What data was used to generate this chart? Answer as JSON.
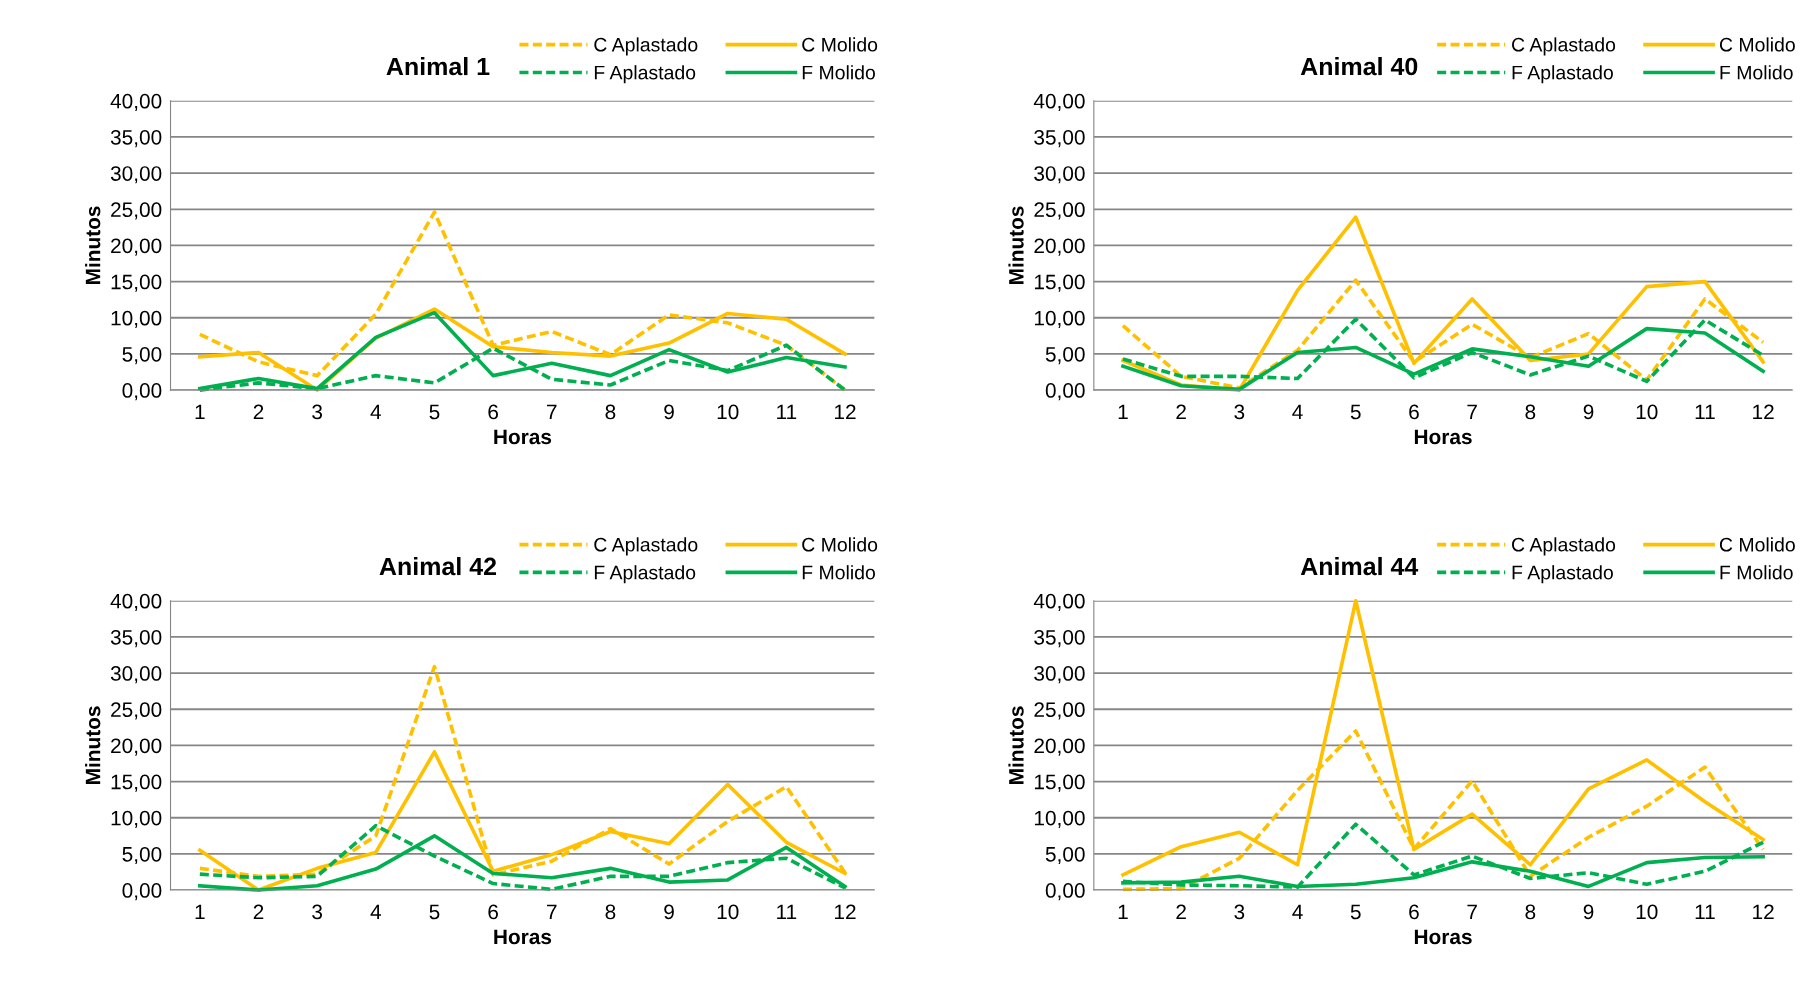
{
  "chart_data": [
    {
      "type": "line",
      "title": "Animal 1",
      "xlabel": "Horas",
      "ylabel": "Minutos",
      "categories": [
        "1",
        "2",
        "3",
        "4",
        "5",
        "6",
        "7",
        "8",
        "9",
        "10",
        "11",
        "12"
      ],
      "ylim": [
        0,
        40
      ],
      "yticks": [
        {
          "value": 0,
          "label": "0,00"
        },
        {
          "value": 5,
          "label": "5,00"
        },
        {
          "value": 10,
          "label": "10,00"
        },
        {
          "value": 15,
          "label": "15,00"
        },
        {
          "value": 20,
          "label": "20,00"
        },
        {
          "value": 25,
          "label": "25,00"
        },
        {
          "value": 30,
          "label": "30,00"
        },
        {
          "value": 35,
          "label": "35,00"
        },
        {
          "value": 40,
          "label": "40,00"
        }
      ],
      "grid": "y",
      "legend": "top right",
      "series": [
        {
          "name": "C Aplastado",
          "color": "#ffc000",
          "line_style": "dashed",
          "values": [
            7.7,
            3.9,
            2.0,
            10.5,
            24.6,
            6.2,
            8.1,
            4.9,
            10.4,
            9.3,
            6.2,
            0
          ]
        },
        {
          "name": "C Molido",
          "color": "#ffc000",
          "line_style": "solid",
          "values": [
            4.6,
            5.2,
            0,
            7.2,
            11.2,
            6.0,
            5.2,
            4.7,
            6.5,
            10.6,
            9.8,
            5.0
          ]
        },
        {
          "name": "F Aplastado",
          "color": "#00b050",
          "line_style": "dashed",
          "values": [
            0,
            1.0,
            0.2,
            2.0,
            1.0,
            5.8,
            1.5,
            0.7,
            4.1,
            2.7,
            6.2,
            0
          ]
        },
        {
          "name": "F Molido",
          "color": "#00b050",
          "line_style": "solid",
          "values": [
            0.2,
            1.6,
            0.2,
            7.3,
            10.7,
            2.0,
            3.7,
            2.0,
            5.6,
            2.5,
            4.5,
            3.2
          ]
        }
      ]
    },
    {
      "type": "line",
      "title": "Animal 40",
      "xlabel": "Horas",
      "ylabel": "Minutos",
      "categories": [
        "1",
        "2",
        "3",
        "4",
        "5",
        "6",
        "7",
        "8",
        "9",
        "10",
        "11",
        "12"
      ],
      "ylim": [
        0,
        40
      ],
      "yticks": [
        {
          "value": 0,
          "label": "0,00"
        },
        {
          "value": 5,
          "label": "5,00"
        },
        {
          "value": 10,
          "label": "10,00"
        },
        {
          "value": 15,
          "label": "15,00"
        },
        {
          "value": 20,
          "label": "20,00"
        },
        {
          "value": 25,
          "label": "25,00"
        },
        {
          "value": 30,
          "label": "30,00"
        },
        {
          "value": 35,
          "label": "35,00"
        },
        {
          "value": 40,
          "label": "40,00"
        }
      ],
      "grid": "y",
      "legend": "top right",
      "series": [
        {
          "name": "C Aplastado",
          "color": "#ffc000",
          "line_style": "dashed",
          "values": [
            8.9,
            1.9,
            0.3,
            5.5,
            15.2,
            3.9,
            9.1,
            4.5,
            7.8,
            1.4,
            12.6,
            6.6
          ]
        },
        {
          "name": "C Molido",
          "color": "#ffc000",
          "line_style": "solid",
          "values": [
            4.1,
            0.7,
            0,
            13.8,
            23.9,
            3.7,
            12.6,
            4.1,
            5.0,
            14.3,
            15.0,
            3.9
          ]
        },
        {
          "name": "F Aplastado",
          "color": "#00b050",
          "line_style": "dashed",
          "values": [
            4.3,
            1.9,
            1.9,
            1.6,
            9.8,
            1.7,
            5.2,
            2.1,
            4.7,
            1.2,
            9.7,
            4.8
          ]
        },
        {
          "name": "F Molido",
          "color": "#00b050",
          "line_style": "solid",
          "values": [
            3.3,
            0.6,
            0.1,
            5.2,
            5.9,
            2.2,
            5.7,
            4.6,
            3.3,
            8.5,
            7.9,
            2.6
          ]
        }
      ]
    },
    {
      "type": "line",
      "title": "Animal 42",
      "xlabel": "Horas",
      "ylabel": "Minutos",
      "categories": [
        "1",
        "2",
        "3",
        "4",
        "5",
        "6",
        "7",
        "8",
        "9",
        "10",
        "11",
        "12"
      ],
      "ylim": [
        0,
        40
      ],
      "yticks": [
        {
          "value": 0,
          "label": "0,00"
        },
        {
          "value": 5,
          "label": "5,00"
        },
        {
          "value": 10,
          "label": "10,00"
        },
        {
          "value": 15,
          "label": "15,00"
        },
        {
          "value": 20,
          "label": "20,00"
        },
        {
          "value": 25,
          "label": "25,00"
        },
        {
          "value": 30,
          "label": "30,00"
        },
        {
          "value": 35,
          "label": "35,00"
        },
        {
          "value": 40,
          "label": "40,00"
        }
      ],
      "grid": "y",
      "legend": "top right",
      "series": [
        {
          "name": "C Aplastado",
          "color": "#ffc000",
          "line_style": "dashed",
          "values": [
            3.0,
            1.9,
            2.2,
            7.5,
            30.9,
            2.1,
            4.0,
            8.5,
            3.6,
            9.5,
            14.3,
            2.4
          ]
        },
        {
          "name": "C Molido",
          "color": "#ffc000",
          "line_style": "solid",
          "values": [
            5.5,
            0,
            3.0,
            5.2,
            19.1,
            2.6,
            4.9,
            8.1,
            6.4,
            14.6,
            6.6,
            2.3
          ]
        },
        {
          "name": "F Aplastado",
          "color": "#00b050",
          "line_style": "dashed",
          "values": [
            2.2,
            1.7,
            1.9,
            8.9,
            4.7,
            0.9,
            0.1,
            1.9,
            1.9,
            3.8,
            4.4,
            0.3
          ]
        },
        {
          "name": "F Molido",
          "color": "#00b050",
          "line_style": "solid",
          "values": [
            0.6,
            0,
            0.6,
            2.9,
            7.5,
            2.3,
            1.7,
            3.0,
            1.1,
            1.4,
            5.9,
            0.5
          ]
        }
      ]
    },
    {
      "type": "line",
      "title": "Animal 44",
      "xlabel": "Horas",
      "ylabel": "Minutos",
      "categories": [
        "1",
        "2",
        "3",
        "4",
        "5",
        "6",
        "7",
        "8",
        "9",
        "10",
        "11",
        "12"
      ],
      "ylim": [
        0,
        40
      ],
      "yticks": [
        {
          "value": 0,
          "label": "0,00"
        },
        {
          "value": 5,
          "label": "5,00"
        },
        {
          "value": 10,
          "label": "10,00"
        },
        {
          "value": 15,
          "label": "15,00"
        },
        {
          "value": 20,
          "label": "20,00"
        },
        {
          "value": 25,
          "label": "25,00"
        },
        {
          "value": 30,
          "label": "30,00"
        },
        {
          "value": 35,
          "label": "35,00"
        },
        {
          "value": 40,
          "label": "40,00"
        }
      ],
      "grid": "y",
      "legend": "top right",
      "series": [
        {
          "name": "C Aplastado",
          "color": "#ffc000",
          "line_style": "dashed",
          "values": [
            0.1,
            0.2,
            4.4,
            13.8,
            22.0,
            5.7,
            15.1,
            1.9,
            7.3,
            11.6,
            17.0,
            5.6
          ]
        },
        {
          "name": "C Molido",
          "color": "#ffc000",
          "line_style": "solid",
          "values": [
            2.1,
            6.0,
            8.0,
            3.5,
            40.0,
            5.6,
            10.5,
            3.5,
            14.0,
            18.0,
            12.2,
            7.0
          ]
        },
        {
          "name": "F Aplastado",
          "color": "#00b050",
          "line_style": "dashed",
          "values": [
            1.2,
            0.7,
            0.6,
            0.4,
            9.1,
            2.1,
            4.7,
            1.6,
            2.4,
            0.8,
            2.6,
            6.6
          ]
        },
        {
          "name": "F Molido",
          "color": "#00b050",
          "line_style": "solid",
          "values": [
            1.0,
            1.1,
            1.9,
            0.5,
            0.8,
            1.7,
            3.9,
            2.6,
            0.5,
            3.8,
            4.5,
            4.6
          ]
        }
      ]
    }
  ]
}
